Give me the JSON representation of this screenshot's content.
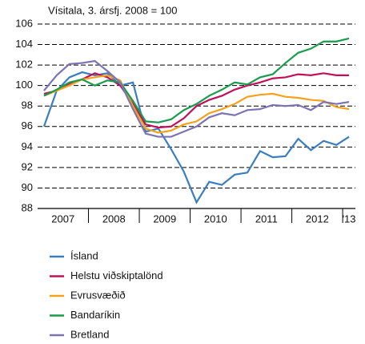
{
  "chart_data": {
    "type": "line",
    "subtitle": "Vísitala, 3. ársfj. 2008 = 100",
    "categories": [
      null,
      "2007",
      null,
      null,
      null,
      "2008",
      null,
      null,
      null,
      "2009",
      null,
      null,
      null,
      "2010",
      null,
      null,
      null,
      "2011",
      null,
      null,
      null,
      "2012",
      null,
      null,
      "'13"
    ],
    "series": [
      {
        "name": "Ísland",
        "color": "#3a7ebf",
        "values": [
          96.0,
          99.5,
          100.8,
          101.3,
          101.0,
          101.2,
          100.0,
          100.3,
          95.5,
          95.8,
          93.8,
          91.6,
          88.6,
          90.6,
          90.3,
          91.3,
          91.5,
          93.6,
          93.0,
          93.1,
          94.8,
          93.7,
          94.6,
          94.2,
          95.0
        ]
      },
      {
        "name": "Helstu viðskiptalönd",
        "color": "#c0105a",
        "values": [
          99.2,
          99.5,
          100.2,
          100.6,
          101.2,
          100.8,
          100.0,
          98.2,
          96.2,
          95.9,
          96.0,
          96.8,
          98.0,
          98.6,
          99.0,
          99.6,
          100.0,
          100.3,
          100.7,
          100.8,
          101.1,
          101.0,
          101.2,
          101.0,
          101.0
        ]
      },
      {
        "name": "Evrusvæðið",
        "color": "#f4a21c",
        "values": [
          99.0,
          99.5,
          100.0,
          100.6,
          100.8,
          101.0,
          100.5,
          98.0,
          95.8,
          95.4,
          95.6,
          96.2,
          96.5,
          97.3,
          97.7,
          98.2,
          98.9,
          99.1,
          99.2,
          98.9,
          98.8,
          98.6,
          98.5,
          97.9,
          97.7
        ]
      },
      {
        "name": "Bandaríkin",
        "color": "#1a9c4f",
        "values": [
          99.0,
          99.6,
          100.3,
          100.6,
          100.0,
          100.5,
          100.3,
          98.5,
          96.5,
          96.4,
          96.7,
          97.6,
          98.2,
          99.0,
          99.6,
          100.3,
          100.1,
          100.8,
          101.1,
          102.2,
          103.2,
          103.6,
          104.3,
          104.3,
          104.6
        ]
      },
      {
        "name": "Bretland",
        "color": "#7d73b3",
        "values": [
          99.5,
          101.0,
          102.1,
          102.2,
          102.4,
          101.4,
          100.3,
          97.7,
          95.3,
          95.0,
          95.0,
          95.5,
          96.0,
          96.9,
          97.3,
          97.1,
          97.6,
          97.7,
          98.1,
          98.0,
          98.1,
          97.6,
          98.4,
          98.2,
          98.4
        ]
      }
    ],
    "ylim": [
      88,
      106
    ],
    "yticks": [
      88,
      90,
      92,
      94,
      96,
      98,
      100,
      102,
      104,
      106
    ],
    "grid": true
  }
}
